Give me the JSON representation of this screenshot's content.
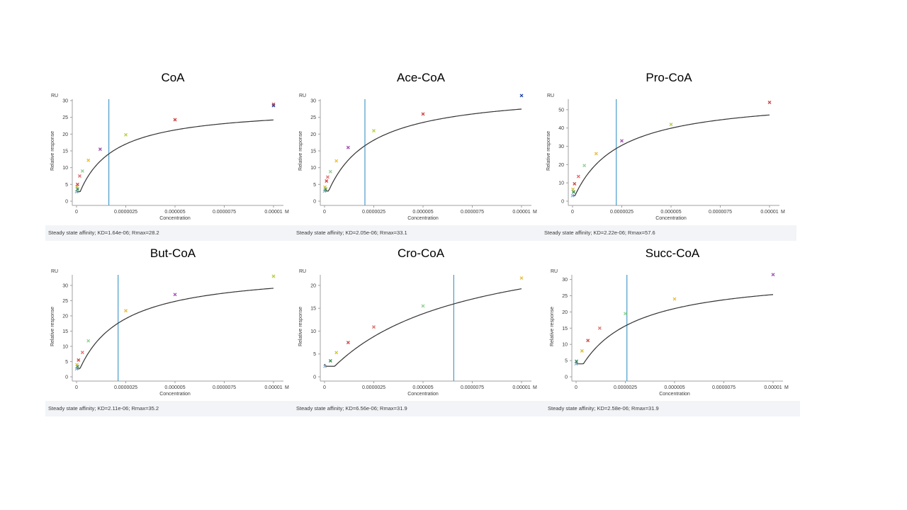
{
  "colors": {
    "fit_curve": "#333333",
    "kd_line": "#4a9cc9",
    "axis": "#a0a0a0",
    "footer_bg": "#f2f4f7",
    "marker_palette": [
      "#8fb4e0",
      "#2e8b57",
      "#d4c23a",
      "#d04040",
      "#e07070",
      "#8fd08f",
      "#e8c040",
      "#a050b0",
      "#b8d040",
      "#d04040",
      "#2040a0",
      "#d04040"
    ]
  },
  "chart_data": [
    {
      "type": "scatter",
      "title": "CoA",
      "xlabel": "Concentration",
      "ylabel": "Relative response",
      "y_unit": "RU",
      "x_unit": "M",
      "xlim": [
        0,
        1e-05
      ],
      "ylim": [
        0,
        30
      ],
      "x_ticks": [
        0,
        2.5e-06,
        5e-06,
        7.5e-06,
        1e-05
      ],
      "x_tick_labels": [
        "0",
        "0.0000025",
        "0.000005",
        "0.0000075",
        "0.00001"
      ],
      "y_ticks": [
        0,
        5,
        10,
        15,
        20,
        25,
        30
      ],
      "y_tick_labels": [
        "0",
        "5",
        "10",
        "15",
        "20",
        "25",
        "30"
      ],
      "kd": 1.64e-06,
      "rmax": 28.2,
      "points": [
        [
          0,
          2.8
        ],
        [
          0,
          3.6
        ],
        [
          2e-08,
          4.3
        ],
        [
          5e-08,
          5.0
        ],
        [
          1.6e-07,
          7.5
        ],
        [
          3e-07,
          9.0
        ],
        [
          6e-07,
          12.2
        ],
        [
          1.2e-06,
          15.5
        ],
        [
          2.5e-06,
          19.8
        ],
        [
          5e-06,
          24.3
        ],
        [
          1e-05,
          28.5
        ],
        [
          1e-05,
          28.9
        ]
      ],
      "footer": "Steady state affinity; KD=1.64e-06; Rmax=28.2"
    },
    {
      "type": "scatter",
      "title": "Ace-CoA",
      "xlabel": "Concentration",
      "ylabel": "Relative response",
      "y_unit": "RU",
      "x_unit": "M",
      "xlim": [
        0,
        1e-05
      ],
      "ylim": [
        0,
        30
      ],
      "x_ticks": [
        0,
        2.5e-06,
        5e-06,
        7.5e-06,
        1e-05
      ],
      "x_tick_labels": [
        "0",
        "0.0000025",
        "0.000005",
        "0.0000075",
        "0.00001"
      ],
      "y_ticks": [
        0,
        5,
        10,
        15,
        20,
        25,
        30
      ],
      "y_tick_labels": [
        "0",
        "5",
        "10",
        "15",
        "20",
        "25",
        "30"
      ],
      "kd": 2.05e-06,
      "rmax": 33.1,
      "points": [
        [
          0,
          3.0
        ],
        [
          0,
          3.6
        ],
        [
          2e-08,
          4.2
        ],
        [
          1e-07,
          6.0
        ],
        [
          1.6e-07,
          7.2
        ],
        [
          3e-07,
          8.8
        ],
        [
          6e-07,
          12.0
        ],
        [
          1.2e-06,
          16.0
        ],
        [
          2.5e-06,
          21.0
        ],
        [
          5e-06,
          26.0
        ],
        [
          1e-05,
          31.5
        ]
      ],
      "footer": "Steady state affinity; KD=2.05e-06; Rmax=33.1"
    },
    {
      "type": "scatter",
      "title": "Pro-CoA",
      "xlabel": "Concentration",
      "ylabel": "Relative response",
      "y_unit": "RU",
      "x_unit": "M",
      "xlim": [
        0,
        1e-05
      ],
      "ylim": [
        0,
        55
      ],
      "x_ticks": [
        0,
        2.5e-06,
        5e-06,
        7.5e-06,
        1e-05
      ],
      "x_tick_labels": [
        "0",
        "0.0000025",
        "0.000005",
        "0.0000075",
        "0.00001"
      ],
      "y_ticks": [
        0,
        10,
        20,
        30,
        40,
        50
      ],
      "y_tick_labels": [
        "0",
        "10",
        "20",
        "30",
        "40",
        "50"
      ],
      "kd": 2.22e-06,
      "rmax": 57.6,
      "points": [
        [
          0,
          3.0
        ],
        [
          0,
          5.0
        ],
        [
          2e-08,
          6.5
        ],
        [
          1e-07,
          9.5
        ],
        [
          3e-07,
          13.5
        ],
        [
          6e-07,
          19.5
        ],
        [
          1.2e-06,
          26.0
        ],
        [
          2.5e-06,
          33.0
        ],
        [
          5e-06,
          42.0
        ],
        [
          1e-05,
          54.0
        ]
      ],
      "footer": "Steady state affinity; KD=2.22e-06; Rmax=57.6"
    },
    {
      "type": "scatter",
      "title": "But-CoA",
      "xlabel": "Concentration",
      "ylabel": "Relative response",
      "y_unit": "RU",
      "x_unit": "M",
      "xlim": [
        0,
        1e-05
      ],
      "ylim": [
        0,
        33
      ],
      "x_ticks": [
        0,
        2.5e-06,
        5e-06,
        7.5e-06,
        1e-05
      ],
      "x_tick_labels": [
        "0",
        "0.0000025",
        "0.000005",
        "0.0000075",
        "0.00001"
      ],
      "y_ticks": [
        0,
        5,
        10,
        15,
        20,
        25,
        30
      ],
      "y_tick_labels": [
        "0",
        "5",
        "10",
        "15",
        "20",
        "25",
        "30"
      ],
      "kd": 2.11e-06,
      "rmax": 35.2,
      "points": [
        [
          0,
          2.6
        ],
        [
          0,
          3.4
        ],
        [
          2e-08,
          4.0
        ],
        [
          1e-07,
          5.5
        ],
        [
          3e-07,
          8.0
        ],
        [
          6e-07,
          11.8
        ],
        [
          2.5e-06,
          21.7
        ],
        [
          5e-06,
          27.0
        ],
        [
          1e-05,
          33.0
        ]
      ],
      "footer": "Steady state affinity; KD=2.11e-06; Rmax=35.2"
    },
    {
      "type": "scatter",
      "title": "Cro-CoA",
      "xlabel": "Concentration",
      "ylabel": "Relative response",
      "y_unit": "RU",
      "x_unit": "M",
      "xlim": [
        0,
        1e-05
      ],
      "ylim": [
        0,
        22
      ],
      "x_ticks": [
        0,
        2.5e-06,
        5e-06,
        7.5e-06,
        1e-05
      ],
      "x_tick_labels": [
        "0",
        "0.0000025",
        "0.000005",
        "0.0000075",
        "0.00001"
      ],
      "y_ticks": [
        0,
        5,
        10,
        15,
        20
      ],
      "y_tick_labels": [
        "0",
        "5",
        "10",
        "15",
        "20"
      ],
      "kd": 6.56e-06,
      "rmax": 31.9,
      "points": [
        [
          2e-08,
          2.3
        ],
        [
          3e-07,
          3.5
        ],
        [
          6e-07,
          5.3
        ],
        [
          1.2e-06,
          7.5
        ],
        [
          2.5e-06,
          10.9
        ],
        [
          5e-06,
          15.5
        ],
        [
          1e-05,
          21.6
        ]
      ],
      "footer": "Steady state affinity; KD=6.56e-06; Rmax=31.9"
    },
    {
      "type": "scatter",
      "title": "Succ-CoA",
      "xlabel": "Concentration",
      "ylabel": "Relative response",
      "y_unit": "RU",
      "x_unit": "M",
      "xlim": [
        0,
        1e-05
      ],
      "ylim": [
        0,
        31
      ],
      "x_ticks": [
        0,
        2.5e-06,
        5e-06,
        7.5e-06,
        1e-05
      ],
      "x_tick_labels": [
        "0",
        "0.0000025",
        "0.000005",
        "0.0000075",
        "0.00001"
      ],
      "y_ticks": [
        0,
        5,
        10,
        15,
        20,
        25,
        30
      ],
      "y_tick_labels": [
        "0",
        "5",
        "10",
        "15",
        "20",
        "25",
        "30"
      ],
      "kd": 2.58e-06,
      "rmax": 31.9,
      "points": [
        [
          0,
          4.0
        ],
        [
          2e-08,
          4.8
        ],
        [
          3e-07,
          8.0
        ],
        [
          6e-07,
          11.2
        ],
        [
          1.2e-06,
          15.0
        ],
        [
          2.5e-06,
          19.5
        ],
        [
          5e-06,
          24.0
        ],
        [
          1e-05,
          31.5
        ]
      ],
      "footer": "Steady state affinity; KD=2.58e-06; Rmax=31.9"
    }
  ]
}
